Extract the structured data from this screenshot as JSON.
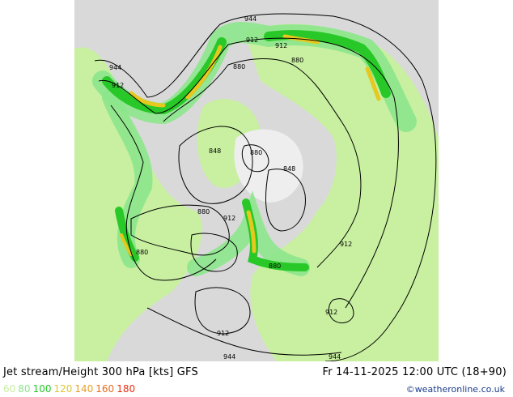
{
  "caption": {
    "title": "Jet stream/Height 300 hPa [kts] GFS",
    "datetime": "Fr 14-11-2025 12:00 UTC (18+90)",
    "copyright": "©weatheronline.co.uk"
  },
  "legend": [
    {
      "label": "60",
      "color": "#c8f0a0"
    },
    {
      "label": "80",
      "color": "#8ce68c"
    },
    {
      "label": "100",
      "color": "#28c828"
    },
    {
      "label": "120",
      "color": "#dcc832"
    },
    {
      "label": "140",
      "color": "#e6a028"
    },
    {
      "label": "160",
      "color": "#e66e1e"
    },
    {
      "label": "180",
      "color": "#e63214"
    }
  ],
  "contour_labels": [
    "944",
    "912",
    "912",
    "880",
    "880",
    "944",
    "912",
    "848",
    "880",
    "848",
    "880",
    "912",
    "880",
    "912",
    "880",
    "912",
    "912",
    "944",
    "944"
  ],
  "colors": {
    "land": "#c8f0a0",
    "sea": "#d9d9d9",
    "jet_core": "#e6c81e",
    "jet_strong": "#28c828",
    "jet_moderate": "#8ce68c",
    "contour": "#000000"
  }
}
